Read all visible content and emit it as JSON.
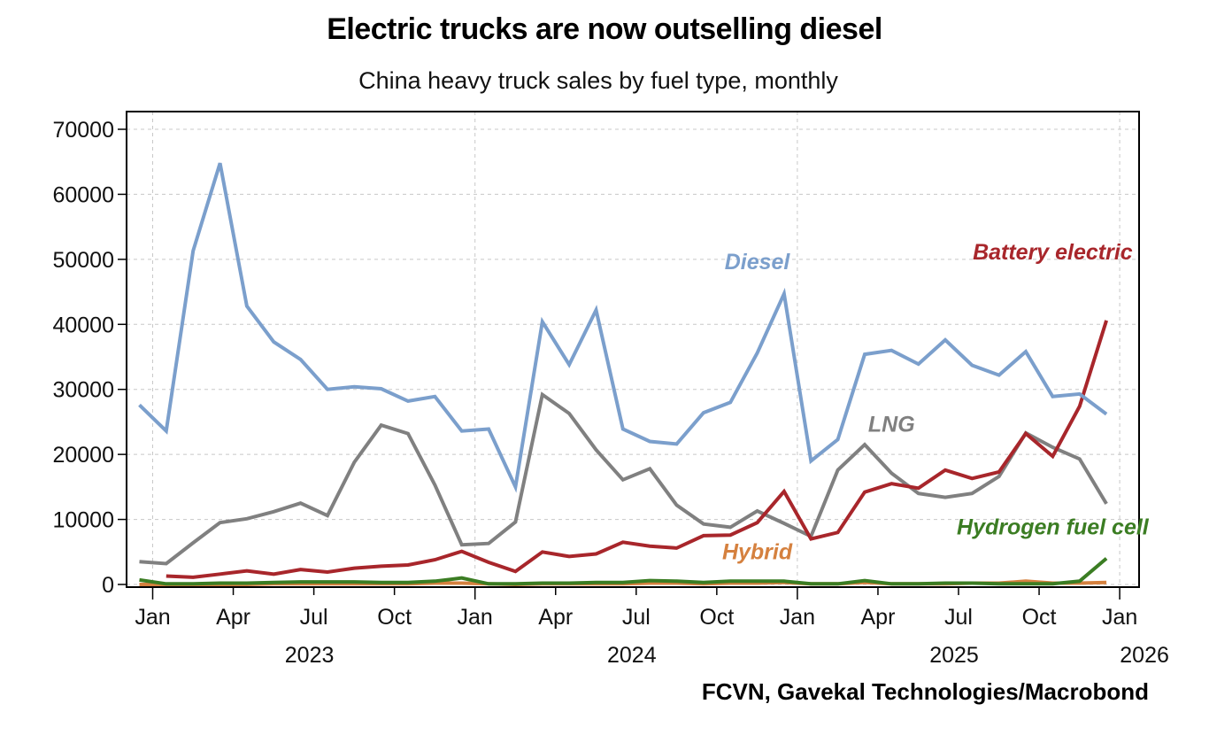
{
  "chart_data": {
    "type": "line",
    "title": "Electric trucks are now outselling diesel",
    "subtitle": "China heavy truck sales by fuel type, monthly",
    "source": "FCVN, Gavekal Technologies/Macrobond",
    "xlabel": "",
    "ylabel": "",
    "ylim": [
      0,
      70000
    ],
    "yticks": [
      0,
      10000,
      20000,
      30000,
      40000,
      50000,
      60000,
      70000
    ],
    "ytick_labels": [
      "0",
      "10000",
      "20000",
      "30000",
      "40000",
      "50000",
      "60000",
      "70000"
    ],
    "x_range": [
      "2022-12",
      "2026-01"
    ],
    "xticks": [
      {
        "label": "Jan",
        "date": "2023-01"
      },
      {
        "label": "Apr",
        "date": "2023-04"
      },
      {
        "label": "Jul",
        "date": "2023-07"
      },
      {
        "label": "Oct",
        "date": "2023-10"
      },
      {
        "label": "Jan",
        "date": "2024-01"
      },
      {
        "label": "Apr",
        "date": "2024-04"
      },
      {
        "label": "Jul",
        "date": "2024-07"
      },
      {
        "label": "Oct",
        "date": "2024-10"
      },
      {
        "label": "Jan",
        "date": "2025-01"
      },
      {
        "label": "Apr",
        "date": "2025-04"
      },
      {
        "label": "Jul",
        "date": "2025-07"
      },
      {
        "label": "Oct",
        "date": "2025-10"
      },
      {
        "label": "Jan",
        "date": "2026-01"
      }
    ],
    "year_labels": [
      {
        "label": "2023",
        "date": "2023-07"
      },
      {
        "label": "2024",
        "date": "2024-07"
      },
      {
        "label": "2025",
        "date": "2025-07"
      },
      {
        "label": "2026",
        "date": "2026-01"
      }
    ],
    "grid": true,
    "x": [
      "2022-12",
      "2023-01",
      "2023-02",
      "2023-03",
      "2023-04",
      "2023-05",
      "2023-06",
      "2023-07",
      "2023-08",
      "2023-09",
      "2023-10",
      "2023-11",
      "2023-12",
      "2024-01",
      "2024-02",
      "2024-03",
      "2024-04",
      "2024-05",
      "2024-06",
      "2024-07",
      "2024-08",
      "2024-09",
      "2024-10",
      "2024-11",
      "2024-12",
      "2025-01",
      "2025-02",
      "2025-03",
      "2025-04",
      "2025-05",
      "2025-06",
      "2025-07",
      "2025-08",
      "2025-09",
      "2025-10",
      "2025-11",
      "2025-12"
    ],
    "series": [
      {
        "name": "Diesel",
        "color": "#7b9fcc",
        "values": [
          27600,
          23600,
          51300,
          64800,
          42800,
          37300,
          34600,
          30000,
          30400,
          30100,
          28200,
          28900,
          23600,
          23900,
          15000,
          40400,
          33800,
          42200,
          23900,
          22000,
          21600,
          26400,
          28000,
          35600,
          44700,
          19000,
          22300,
          35400,
          36000,
          33900,
          37600,
          33700,
          32200,
          35800,
          28900,
          29300,
          26200
        ],
        "label_anchor": {
          "date": "2024-11",
          "value": 48500
        }
      },
      {
        "name": "LNG",
        "color": "#808080",
        "values": [
          3500,
          3200,
          6400,
          9500,
          10100,
          11200,
          12500,
          10600,
          18800,
          24500,
          23200,
          15300,
          6100,
          6300,
          9600,
          29200,
          26300,
          20700,
          16100,
          17800,
          12200,
          9300,
          8800,
          11300,
          9400,
          7400,
          17600,
          21500,
          17100,
          14000,
          13400,
          14000,
          16600,
          23300,
          21100,
          19300,
          12400
        ],
        "label_anchor": {
          "date": "2025-04",
          "value": 23500
        }
      },
      {
        "name": "Battery electric",
        "color": "#a8262b",
        "values": [
          null,
          1300,
          1100,
          1600,
          2100,
          1600,
          2300,
          1900,
          2500,
          2800,
          3000,
          3800,
          5100,
          3400,
          2000,
          5000,
          4300,
          4700,
          6500,
          5900,
          5600,
          7500,
          7600,
          9500,
          14300,
          7000,
          8000,
          14200,
          15500,
          14800,
          17600,
          16300,
          17300,
          23200,
          19700,
          27400,
          40600
        ],
        "label_anchor": {
          "date": "2025-10",
          "value": 50000
        }
      },
      {
        "name": "Hybrid",
        "color": "#d5813f",
        "values": [
          0,
          0,
          0,
          0,
          0,
          100,
          100,
          100,
          100,
          100,
          100,
          200,
          200,
          100,
          0,
          100,
          100,
          100,
          100,
          200,
          200,
          100,
          200,
          200,
          300,
          100,
          100,
          300,
          100,
          100,
          100,
          200,
          200,
          500,
          200,
          200,
          300
        ],
        "label_anchor": {
          "date": "2024-11",
          "value": 3900
        }
      },
      {
        "name": "Hydrogen fuel cell",
        "color": "#3b7d23",
        "values": [
          700,
          100,
          100,
          200,
          200,
          300,
          400,
          400,
          400,
          300,
          300,
          500,
          1000,
          100,
          100,
          200,
          200,
          300,
          300,
          600,
          500,
          300,
          500,
          500,
          500,
          100,
          100,
          600,
          100,
          100,
          200,
          200,
          100,
          100,
          100,
          500,
          4000
        ],
        "label_anchor": {
          "date": "2025-10",
          "value": 7700
        }
      }
    ]
  }
}
